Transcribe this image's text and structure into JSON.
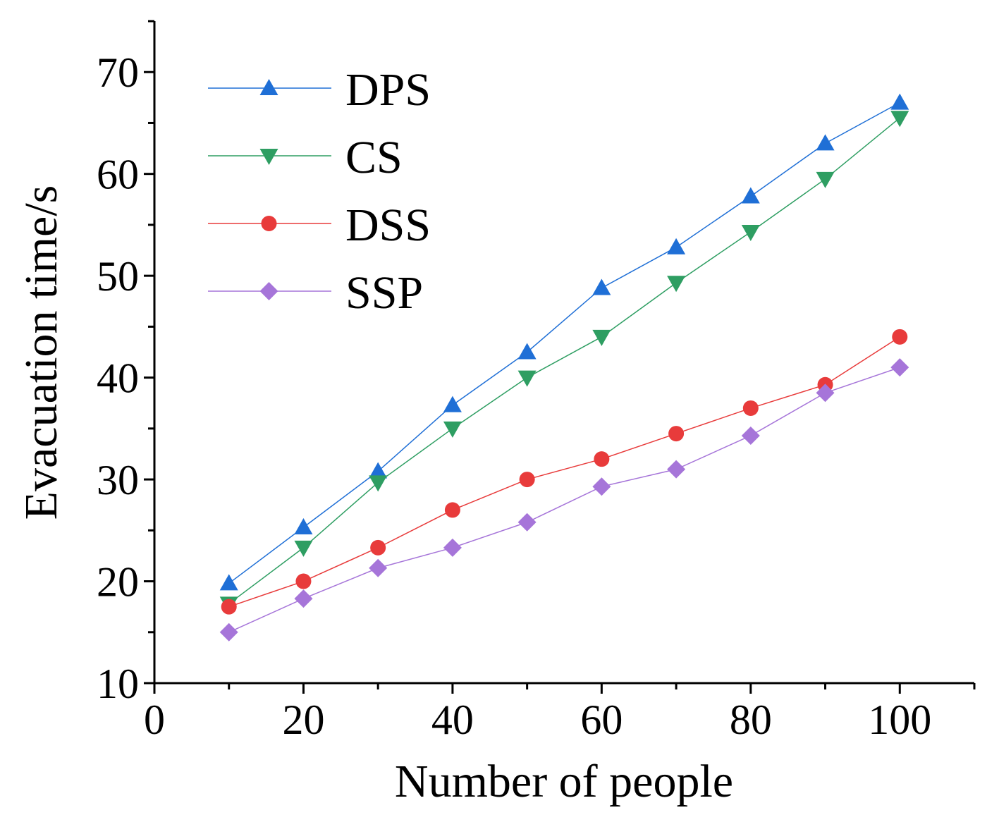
{
  "chart_data": {
    "type": "line",
    "title": "",
    "xlabel": "Number of people",
    "ylabel": "Evacuation time/s",
    "xlim": [
      0,
      110
    ],
    "ylim": [
      10,
      75
    ],
    "xticks": [
      0,
      20,
      40,
      60,
      80,
      100
    ],
    "xtick_labels": [
      "0",
      "20",
      "40",
      "60",
      "80",
      "100"
    ],
    "yticks": [
      10,
      20,
      30,
      40,
      50,
      60,
      70
    ],
    "ytick_labels": [
      "10",
      "20",
      "30",
      "40",
      "50",
      "60",
      "70"
    ],
    "x": [
      10,
      20,
      30,
      40,
      50,
      60,
      70,
      80,
      90,
      100
    ],
    "legend_position": "top-left",
    "grid": false,
    "series": [
      {
        "name": "DPS",
        "marker": "triangle-up",
        "color": "#1f6fd6",
        "values": [
          19.8,
          25.3,
          30.8,
          37.3,
          42.5,
          48.8,
          52.8,
          57.8,
          63.0,
          67.0
        ]
      },
      {
        "name": "CS",
        "marker": "triangle-down",
        "color": "#2e9e62",
        "values": [
          17.8,
          23.3,
          29.7,
          35.0,
          40.0,
          44.0,
          49.3,
          54.3,
          59.5,
          65.5
        ]
      },
      {
        "name": "DSS",
        "marker": "circle",
        "color": "#e83b3b",
        "values": [
          17.5,
          20.0,
          23.3,
          27.0,
          30.0,
          32.0,
          34.5,
          37.0,
          39.3,
          44.0
        ]
      },
      {
        "name": "SSP",
        "marker": "diamond",
        "color": "#a675d9",
        "values": [
          15.0,
          18.3,
          21.3,
          23.3,
          25.8,
          29.3,
          31.0,
          34.3,
          38.5,
          41.0
        ]
      }
    ]
  }
}
